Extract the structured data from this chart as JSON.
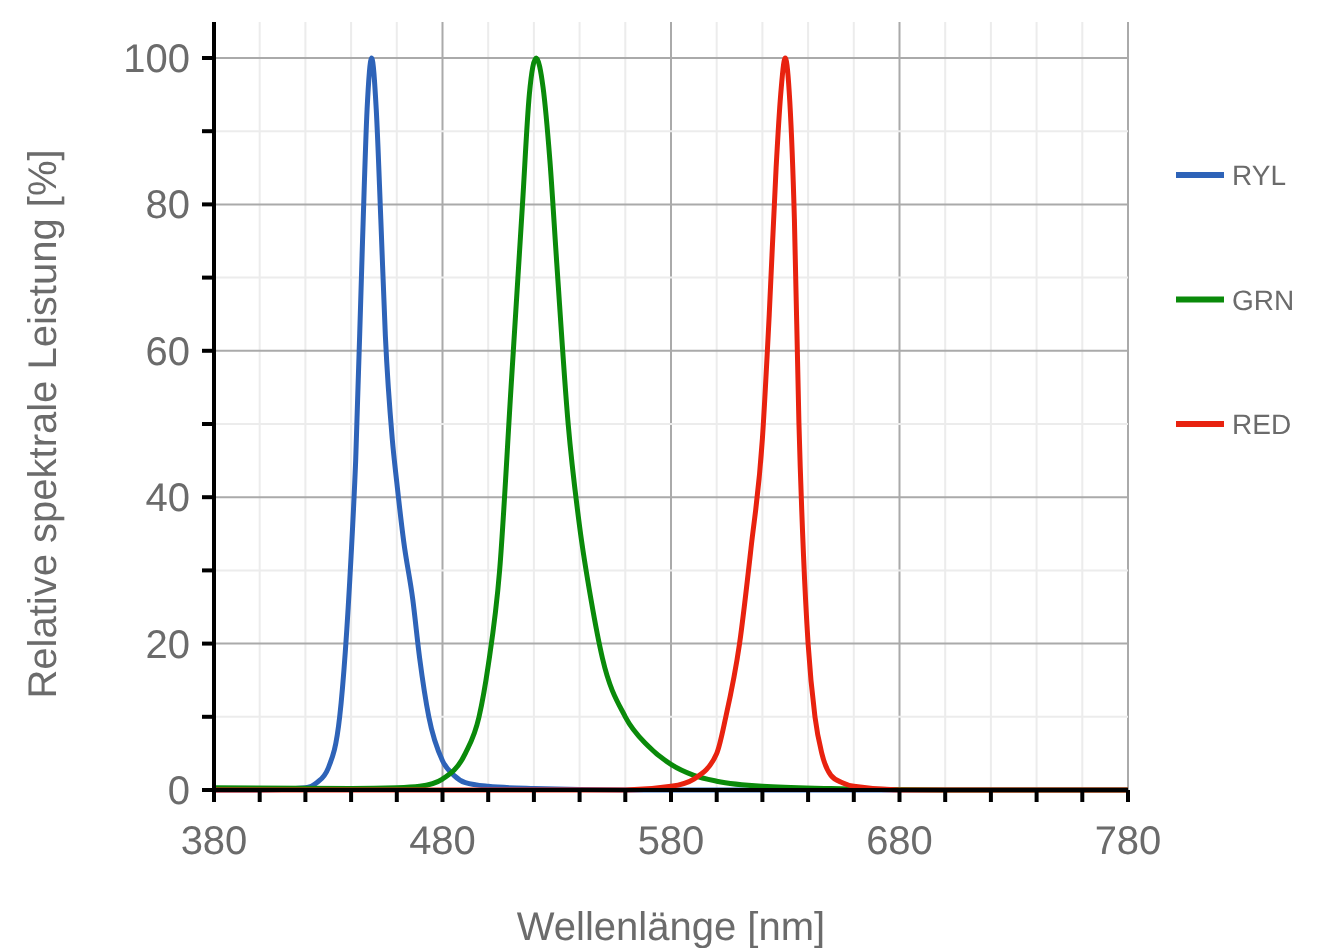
{
  "chart_data": {
    "type": "line",
    "xlabel": "Wellenlänge [nm]",
    "ylabel": "Relative spektrale Leistung [%]",
    "xlim": [
      380,
      780
    ],
    "xticks": [
      380,
      {
        "value": 400,
        "label": null
      },
      {
        "value": 420,
        "label": null
      },
      {
        "value": 440,
        "label": null
      },
      {
        "value": 460,
        "label": null
      },
      480,
      {
        "value": 500,
        "label": null
      },
      {
        "value": 520,
        "label": null
      },
      {
        "value": 540,
        "label": null
      },
      {
        "value": 560,
        "label": null
      },
      580,
      {
        "value": 600,
        "label": null
      },
      {
        "value": 620,
        "label": null
      },
      {
        "value": 640,
        "label": null
      },
      {
        "value": 660,
        "label": null
      },
      680,
      {
        "value": 700,
        "label": null
      },
      {
        "value": 720,
        "label": null
      },
      {
        "value": 740,
        "label": null
      },
      {
        "value": 760,
        "label": null
      },
      780
    ],
    "ylim": [
      0,
      100
    ],
    "yticks": [
      0,
      {
        "value": 10,
        "label": null
      },
      20,
      {
        "value": 30,
        "label": null
      },
      40,
      {
        "value": 50,
        "label": null
      },
      60,
      {
        "value": 70,
        "label": null
      },
      80,
      {
        "value": 90,
        "label": null
      },
      100
    ],
    "grid": true,
    "legend": "right",
    "marker": "none",
    "line_style": "solid",
    "series": [
      {
        "name": "RYL",
        "color": "#2e63b8",
        "x": [
          380,
          400,
          420,
          425,
          430,
          435,
          440,
          442,
          445,
          447,
          449,
          451,
          453,
          455,
          458,
          460,
          463,
          467,
          470,
          474,
          480,
          485,
          490,
          500,
          520,
          560,
          600,
          700,
          780
        ],
        "values": [
          0,
          0,
          0.3,
          1,
          3,
          10,
          32,
          45,
          75,
          93,
          100,
          93,
          78,
          62,
          48,
          42,
          34,
          26,
          18,
          10,
          4,
          2,
          1,
          0.5,
          0.2,
          0,
          0,
          0,
          0
        ]
      },
      {
        "name": "GRN",
        "color": "#0a8a0a",
        "x": [
          380,
          440,
          460,
          470,
          480,
          490,
          496,
          500,
          505,
          510,
          515,
          518,
          521,
          524,
          527,
          530,
          535,
          540,
          545,
          550,
          560,
          570,
          580,
          590,
          600,
          620,
          650,
          700,
          780
        ],
        "values": [
          0.3,
          0.2,
          0.3,
          0.5,
          1.5,
          5,
          10,
          17,
          30,
          55,
          80,
          95,
          100,
          96,
          86,
          72,
          50,
          36,
          26,
          18,
          10,
          6,
          3.5,
          2,
          1.2,
          0.5,
          0.2,
          0,
          0
        ]
      },
      {
        "name": "RED",
        "color": "#e8220f",
        "x": [
          380,
          560,
          580,
          590,
          600,
          604,
          610,
          615,
          620,
          623,
          626,
          628,
          630,
          632,
          634,
          636,
          638,
          640,
          643,
          646,
          650,
          655,
          660,
          680,
          780
        ],
        "values": [
          0,
          0,
          0.5,
          1.5,
          5,
          10,
          20,
          33,
          48,
          65,
          85,
          95,
          100,
          94,
          78,
          50,
          32,
          20,
          10,
          5,
          2,
          1,
          0.5,
          0,
          0
        ]
      }
    ]
  }
}
